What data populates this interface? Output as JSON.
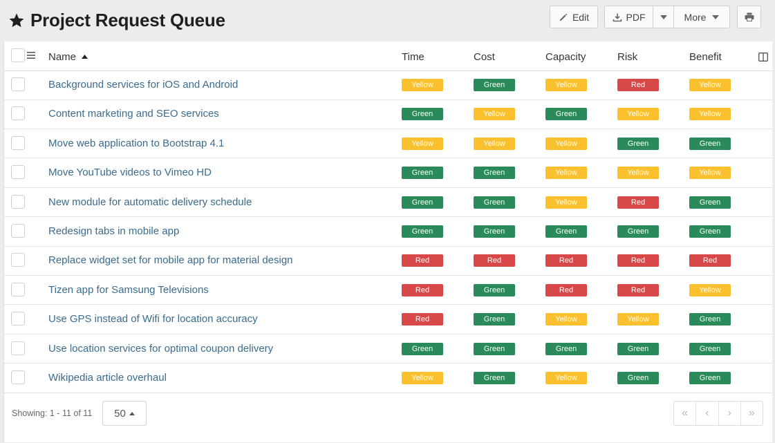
{
  "page": {
    "title": "Project Request Queue"
  },
  "toolbar": {
    "edit_label": "Edit",
    "pdf_label": "PDF",
    "more_label": "More"
  },
  "table": {
    "columns": {
      "name": "Name",
      "time": "Time",
      "cost": "Cost",
      "capacity": "Capacity",
      "risk": "Risk",
      "benefit": "Benefit"
    },
    "sort": {
      "column": "Name",
      "direction": "ascending"
    },
    "rows": [
      {
        "name": "Background services for iOS and Android",
        "time": "Yellow",
        "cost": "Green",
        "capacity": "Yellow",
        "risk": "Red",
        "benefit": "Yellow"
      },
      {
        "name": "Content marketing and SEO services",
        "time": "Green",
        "cost": "Yellow",
        "capacity": "Green",
        "risk": "Yellow",
        "benefit": "Yellow"
      },
      {
        "name": "Move web application to Bootstrap 4.1",
        "time": "Yellow",
        "cost": "Yellow",
        "capacity": "Yellow",
        "risk": "Green",
        "benefit": "Green"
      },
      {
        "name": "Move YouTube videos to Vimeo HD",
        "time": "Green",
        "cost": "Green",
        "capacity": "Yellow",
        "risk": "Yellow",
        "benefit": "Yellow"
      },
      {
        "name": "New module for automatic delivery schedule",
        "time": "Green",
        "cost": "Green",
        "capacity": "Yellow",
        "risk": "Red",
        "benefit": "Green"
      },
      {
        "name": "Redesign tabs in mobile app",
        "time": "Green",
        "cost": "Green",
        "capacity": "Green",
        "risk": "Green",
        "benefit": "Green"
      },
      {
        "name": "Replace widget set for mobile app for material design",
        "time": "Red",
        "cost": "Red",
        "capacity": "Red",
        "risk": "Red",
        "benefit": "Red"
      },
      {
        "name": "Tizen app for Samsung Televisions",
        "time": "Red",
        "cost": "Green",
        "capacity": "Red",
        "risk": "Red",
        "benefit": "Yellow"
      },
      {
        "name": "Use GPS instead of Wifi for location accuracy",
        "time": "Red",
        "cost": "Green",
        "capacity": "Yellow",
        "risk": "Yellow",
        "benefit": "Green"
      },
      {
        "name": "Use location services for optimal coupon delivery",
        "time": "Green",
        "cost": "Green",
        "capacity": "Green",
        "risk": "Green",
        "benefit": "Green"
      },
      {
        "name": "Wikipedia article overhaul",
        "time": "Yellow",
        "cost": "Green",
        "capacity": "Yellow",
        "risk": "Green",
        "benefit": "Green"
      }
    ]
  },
  "footer": {
    "showing": "Showing: 1 - 11 of 11",
    "per_page": "50"
  },
  "colors": {
    "Green": "#2a8a5a",
    "Yellow": "#fbc02d",
    "Red": "#d94848",
    "link": "#3a6b8e"
  }
}
